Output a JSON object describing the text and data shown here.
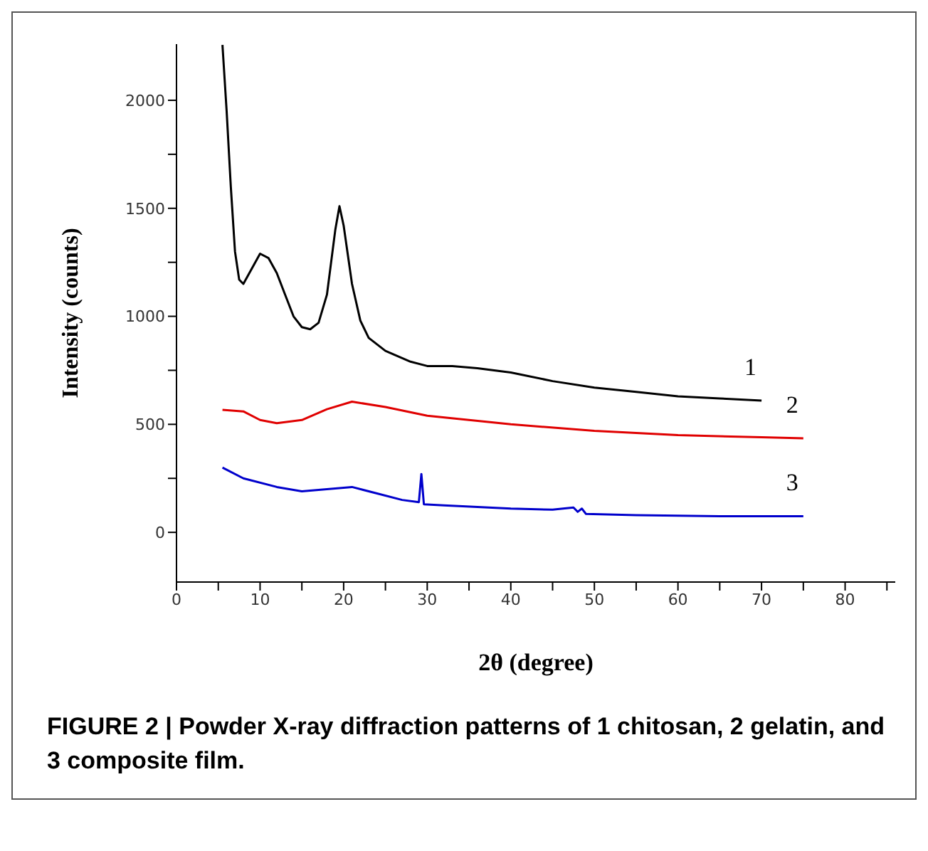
{
  "chart_data": {
    "type": "line",
    "xlabel": "2θ (degree)",
    "ylabel": "Intensity  (counts)",
    "xlim": [
      0,
      86
    ],
    "ylim": [
      -230,
      2260
    ],
    "xticks": [
      0,
      {
        "value": 5,
        "label": null
      },
      10,
      {
        "value": 15,
        "label": null
      },
      20,
      {
        "value": 25,
        "label": null
      },
      30,
      {
        "value": 35,
        "label": null
      },
      40,
      {
        "value": 45,
        "label": null
      },
      50,
      {
        "value": 55,
        "label": null
      },
      60,
      {
        "value": 65,
        "label": null
      },
      70,
      {
        "value": 75,
        "label": null
      },
      80,
      {
        "value": 85,
        "label": null
      }
    ],
    "yticks": [
      0,
      {
        "value": 250,
        "label": null
      },
      500,
      {
        "value": 750,
        "label": null
      },
      1000,
      {
        "value": 1250,
        "label": null
      },
      1500,
      {
        "value": 1750,
        "label": null
      },
      2000
    ],
    "grid": false,
    "legend": false,
    "marker": "none",
    "line_style": "solid",
    "series": [
      {
        "name": "1",
        "color": "#000000",
        "x": [
          5.5,
          6,
          6.5,
          7,
          7.5,
          8,
          9,
          10,
          11,
          12,
          13,
          14,
          15,
          16,
          17,
          18,
          19,
          19.5,
          20,
          21,
          22,
          23,
          25,
          28,
          30,
          33,
          36,
          40,
          45,
          50,
          55,
          60,
          65,
          70
        ],
        "values": [
          2256,
          1950,
          1600,
          1300,
          1170,
          1150,
          1220,
          1290,
          1270,
          1200,
          1100,
          1000,
          950,
          940,
          970,
          1100,
          1400,
          1510,
          1420,
          1150,
          980,
          900,
          840,
          790,
          770,
          770,
          760,
          740,
          700,
          670,
          650,
          630,
          620,
          610
        ]
      },
      {
        "name": "2",
        "color": "#e00000",
        "x": [
          5.5,
          8,
          10,
          12,
          15,
          18,
          21,
          25,
          30,
          35,
          40,
          50,
          60,
          70,
          75
        ],
        "values": [
          567,
          560,
          520,
          505,
          520,
          570,
          605,
          580,
          540,
          520,
          500,
          470,
          450,
          440,
          435
        ]
      },
      {
        "name": "3",
        "color": "#0000cc",
        "x": [
          5.5,
          8,
          12,
          15,
          18,
          21,
          24,
          27,
          29,
          29.3,
          29.6,
          32,
          40,
          45,
          47.5,
          48,
          48.5,
          49,
          55,
          65,
          75
        ],
        "values": [
          300,
          250,
          210,
          190,
          200,
          210,
          180,
          150,
          140,
          270,
          130,
          125,
          110,
          105,
          115,
          95,
          110,
          85,
          80,
          75,
          75
        ]
      }
    ],
    "annotations": [
      "FIGURE 2 | Powder X-ray diffraction patterns of 1 chitosan, 2 gelatin, and 3 composite film."
    ]
  }
}
